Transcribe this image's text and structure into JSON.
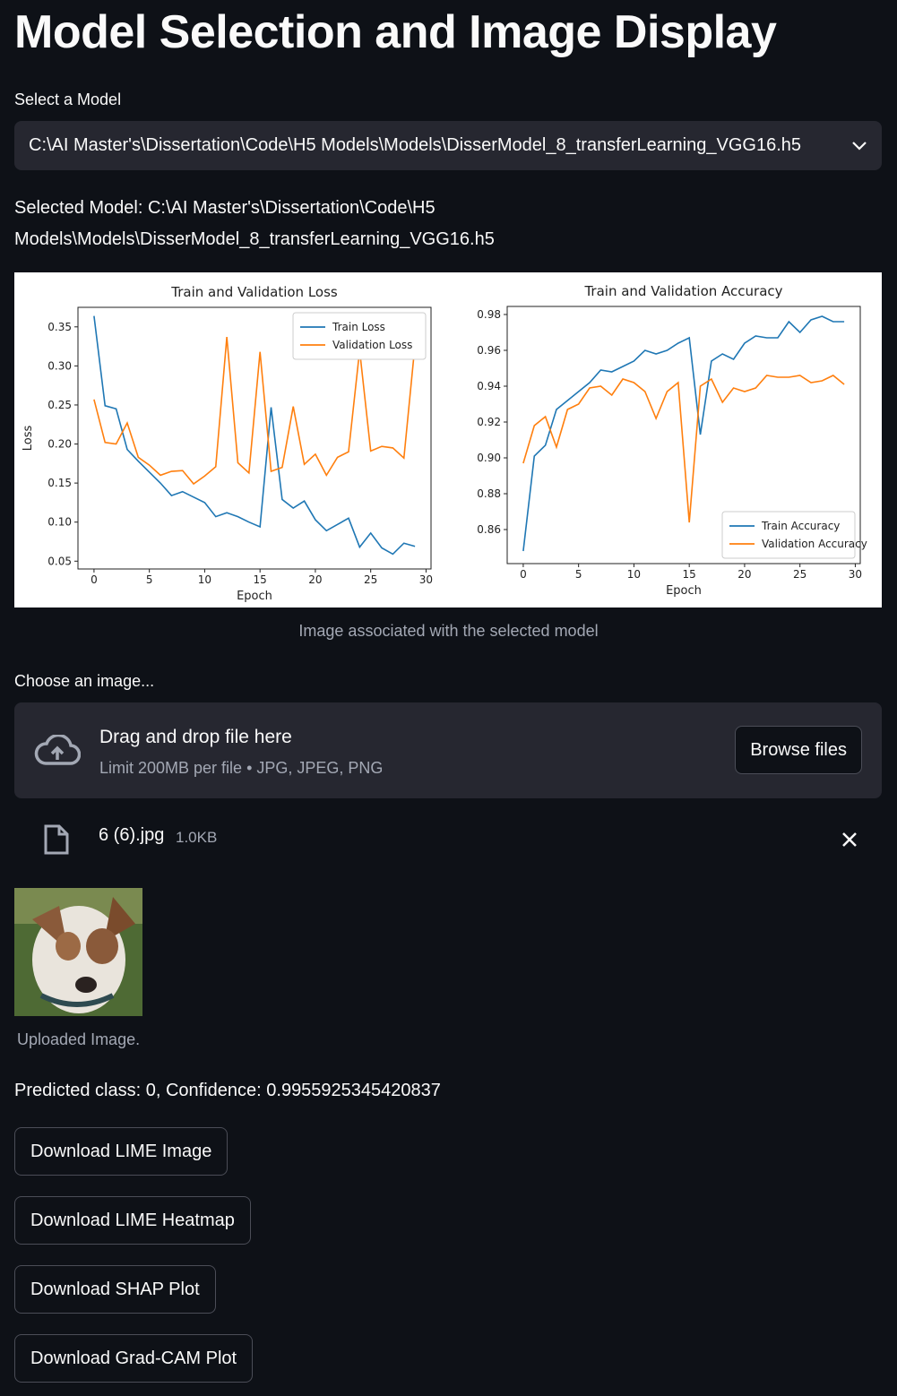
{
  "header": {
    "title": "Model Selection and Image Display"
  },
  "select": {
    "label": "Select a Model",
    "value": "C:\\AI Master's\\Dissertation\\Code\\H5 Models\\Models\\DisserModel_8_transferLearning_VGG16.h5"
  },
  "selected_model": {
    "text": "Selected Model: C:\\AI Master's\\Dissertation\\Code\\H5 Models\\Models\\DisserModel_8_transferLearning_VGG16.h5"
  },
  "chart_data": [
    {
      "type": "line",
      "title": "Train and Validation Loss",
      "x_label": "Epoch",
      "y_label": "Loss",
      "x": [
        0,
        1,
        2,
        3,
        4,
        5,
        6,
        7,
        8,
        9,
        10,
        11,
        12,
        13,
        14,
        15,
        16,
        17,
        18,
        19,
        20,
        21,
        22,
        23,
        24,
        25,
        26,
        27,
        28,
        29
      ],
      "series": [
        {
          "name": "Train Loss",
          "color": "#1f77b4",
          "values": [
            0.364,
            0.249,
            0.245,
            0.193,
            0.178,
            0.164,
            0.15,
            0.134,
            0.139,
            0.132,
            0.125,
            0.107,
            0.112,
            0.107,
            0.1,
            0.094,
            0.247,
            0.129,
            0.118,
            0.127,
            0.103,
            0.089,
            0.097,
            0.105,
            0.068,
            0.086,
            0.067,
            0.059,
            0.073,
            0.069
          ]
        },
        {
          "name": "Validation Loss",
          "color": "#ff7f0e",
          "values": [
            0.257,
            0.202,
            0.2,
            0.227,
            0.183,
            0.173,
            0.16,
            0.165,
            0.166,
            0.149,
            0.159,
            0.171,
            0.337,
            0.176,
            0.163,
            0.318,
            0.165,
            0.17,
            0.248,
            0.174,
            0.187,
            0.16,
            0.183,
            0.19,
            0.32,
            0.191,
            0.197,
            0.195,
            0.182,
            0.327
          ]
        }
      ],
      "xlim": [
        -1.45,
        30.45
      ],
      "xticks": [
        0,
        5,
        10,
        15,
        20,
        25,
        30
      ],
      "ylim": [
        0.04,
        0.375
      ],
      "yticks": [
        {
          "value": 0.05,
          "label": "0.05"
        },
        {
          "value": 0.1,
          "label": "0.10"
        },
        {
          "value": 0.15,
          "label": "0.15"
        },
        {
          "value": 0.2,
          "label": "0.20"
        },
        {
          "value": 0.25,
          "label": "0.25"
        },
        {
          "value": 0.3,
          "label": "0.30"
        },
        {
          "value": 0.35,
          "label": "0.35"
        }
      ],
      "legend": "upper right"
    },
    {
      "type": "line",
      "title": "Train and Validation Accuracy",
      "x_label": "Epoch",
      "x": [
        0,
        1,
        2,
        3,
        4,
        5,
        6,
        7,
        8,
        9,
        10,
        11,
        12,
        13,
        14,
        15,
        16,
        17,
        18,
        19,
        20,
        21,
        22,
        23,
        24,
        25,
        26,
        27,
        28,
        29
      ],
      "series": [
        {
          "name": "Train Accuracy",
          "color": "#1f77b4",
          "values": [
            0.848,
            0.901,
            0.907,
            0.927,
            0.932,
            0.937,
            0.942,
            0.949,
            0.948,
            0.951,
            0.954,
            0.96,
            0.958,
            0.96,
            0.964,
            0.967,
            0.913,
            0.954,
            0.958,
            0.955,
            0.964,
            0.968,
            0.967,
            0.967,
            0.976,
            0.97,
            0.977,
            0.979,
            0.976,
            0.976
          ]
        },
        {
          "name": "Validation Accuracy",
          "color": "#ff7f0e",
          "values": [
            0.897,
            0.918,
            0.923,
            0.906,
            0.927,
            0.93,
            0.939,
            0.94,
            0.935,
            0.944,
            0.942,
            0.937,
            0.922,
            0.937,
            0.942,
            0.864,
            0.94,
            0.944,
            0.931,
            0.939,
            0.937,
            0.939,
            0.946,
            0.945,
            0.945,
            0.946,
            0.942,
            0.943,
            0.946,
            0.941
          ]
        }
      ],
      "xlim": [
        -1.45,
        30.45
      ],
      "xticks": [
        0,
        5,
        10,
        15,
        20,
        25,
        30
      ],
      "ylim": [
        0.841,
        0.9845
      ],
      "yticks": [
        0.86,
        0.88,
        {
          "value": 0.9,
          "label": "0.90"
        },
        0.92,
        0.94,
        0.96,
        0.98
      ],
      "legend": "lower right"
    }
  ],
  "image_caption": "Image associated with the selected model",
  "uploader": {
    "label": "Choose an image...",
    "drag_text": "Drag and drop file here",
    "limit_text": "Limit 200MB per file • JPG, JPEG, PNG",
    "button": "Browse files"
  },
  "file": {
    "name": "6 (6).jpg",
    "size": "1.0KB"
  },
  "uploaded_image": {
    "caption": "Uploaded Image."
  },
  "prediction": {
    "text": "Predicted class: 0, Confidence: 0.9955925345420837"
  },
  "buttons": [
    "Download LIME Image",
    "Download LIME Heatmap",
    "Download SHAP Plot",
    "Download Grad-CAM Plot"
  ]
}
